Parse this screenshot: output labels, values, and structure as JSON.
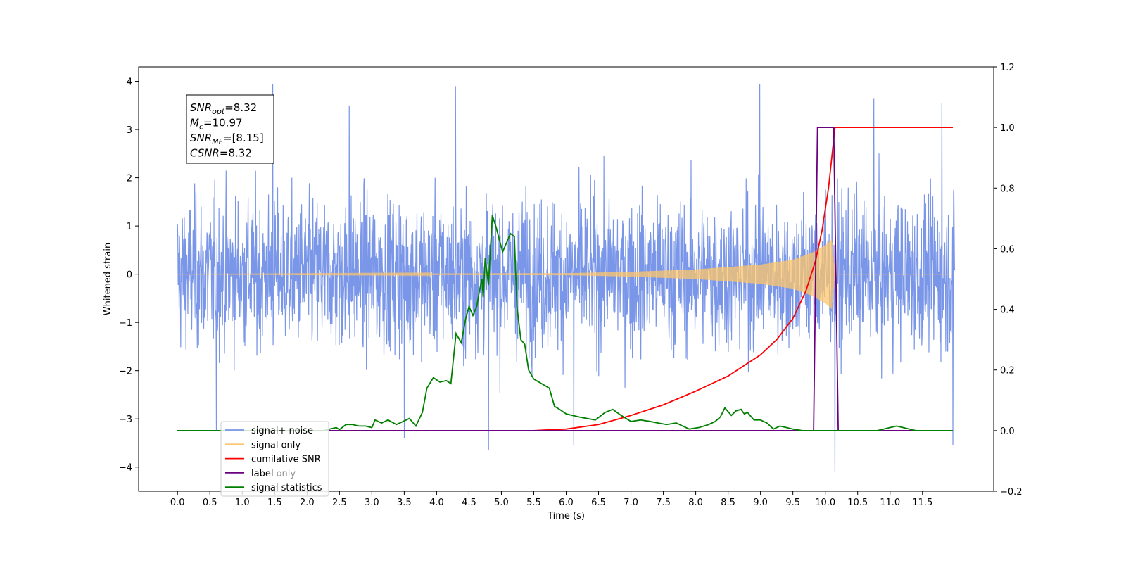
{
  "chart_data": {
    "type": "line",
    "title": "",
    "xlabel": "Time (s)",
    "ylabel": "Whitened strain",
    "xlim": [
      -0.6,
      12.6
    ],
    "ylim": [
      -4.5,
      4.3
    ],
    "y2lim": [
      -0.2,
      1.2
    ],
    "x_ticks": [
      0.0,
      0.5,
      1.0,
      1.5,
      2.0,
      2.5,
      3.0,
      3.5,
      4.0,
      4.5,
      5.0,
      5.5,
      6.0,
      6.5,
      7.0,
      7.5,
      8.0,
      8.5,
      9.0,
      9.5,
      10.0,
      10.5,
      11.0,
      11.5
    ],
    "x_tick_labels": [
      "0.0",
      "0.5",
      "1.0",
      "1.5",
      "2.0",
      "2.5",
      "3.0",
      "3.5",
      "4.0",
      "4.5",
      "5.0",
      "5.5",
      "6.0",
      "6.5",
      "7.0",
      "7.5",
      "8.0",
      "8.5",
      "9.0",
      "9.5",
      "10.0",
      "10.5",
      "11.0",
      "11.5"
    ],
    "y_ticks": [
      -4,
      -3,
      -2,
      -1,
      0,
      1,
      2,
      3,
      4
    ],
    "y_tick_labels": [
      "−4",
      "−3",
      "−2",
      "−1",
      "0",
      "1",
      "2",
      "3",
      "4"
    ],
    "y2_ticks": [
      -0.2,
      0.0,
      0.2,
      0.4,
      0.6,
      0.8,
      1.0,
      1.2
    ],
    "y2_tick_labels": [
      "−0.2",
      "0.0",
      "0.2",
      "0.4",
      "0.6",
      "0.8",
      "1.0",
      "1.2"
    ],
    "grid": false,
    "legend_position": "lower-left",
    "legend": [
      {
        "label": "signal+ noise",
        "color": "#7a96e8"
      },
      {
        "label": "signal only",
        "color": "#ffc56b"
      },
      {
        "label": "cumilative SNR",
        "color": "#ff0000"
      },
      {
        "label": "label",
        "color": "#6a0080"
      },
      {
        "label": "signal statistics",
        "color": "#008000"
      }
    ],
    "legend_hidden_text": "label only",
    "info_box": [
      {
        "base": "SNR",
        "sub": "opt",
        "rest": "=8.32"
      },
      {
        "base": "M",
        "sub": "c",
        "rest": "=10.97"
      },
      {
        "base": "SNR",
        "sub": "MF",
        "rest": "=[8.15]"
      },
      {
        "base": "CSNR",
        "sub": "",
        "rest": "=8.32"
      }
    ],
    "series": [
      {
        "name": "signal+ noise",
        "axis": "left",
        "color": "#7a96e8",
        "x_range": [
          0.0,
          12.0
        ],
        "samples": 2400,
        "typical_range": [
          -2.0,
          2.0
        ],
        "peaks": [
          {
            "x": 1.47,
            "y": 3.95
          },
          {
            "x": 4.29,
            "y": 3.9
          },
          {
            "x": 8.99,
            "y": 3.95
          },
          {
            "x": 2.65,
            "y": 3.5
          },
          {
            "x": 11.8,
            "y": 3.55
          },
          {
            "x": 10.75,
            "y": 3.65
          },
          {
            "x": 0.6,
            "y": -3.25
          },
          {
            "x": 3.5,
            "y": -3.4
          },
          {
            "x": 4.8,
            "y": -3.65
          },
          {
            "x": 6.12,
            "y": -3.55
          },
          {
            "x": 10.15,
            "y": -4.1
          },
          {
            "x": 11.97,
            "y": -3.55
          }
        ]
      },
      {
        "name": "signal only",
        "axis": "left",
        "color": "#ffc56b",
        "envelope": [
          {
            "x": 0.0,
            "amp": 0.0
          },
          {
            "x": 6.0,
            "amp": 0.02
          },
          {
            "x": 7.0,
            "amp": 0.05
          },
          {
            "x": 8.0,
            "amp": 0.1
          },
          {
            "x": 9.0,
            "amp": 0.2
          },
          {
            "x": 9.5,
            "amp": 0.3
          },
          {
            "x": 9.8,
            "amp": 0.45
          },
          {
            "x": 10.0,
            "amp": 0.6
          },
          {
            "x": 10.1,
            "amp": 0.72
          },
          {
            "x": 10.15,
            "amp": 0.0
          },
          {
            "x": 12.0,
            "amp": 0.0
          }
        ]
      },
      {
        "name": "cumilative SNR",
        "axis": "right",
        "color": "#ff0000",
        "points": [
          [
            0.0,
            0.0
          ],
          [
            5.5,
            0.0
          ],
          [
            6.0,
            0.005
          ],
          [
            6.5,
            0.02
          ],
          [
            7.0,
            0.05
          ],
          [
            7.5,
            0.085
          ],
          [
            8.0,
            0.13
          ],
          [
            8.5,
            0.18
          ],
          [
            9.0,
            0.25
          ],
          [
            9.25,
            0.3
          ],
          [
            9.5,
            0.37
          ],
          [
            9.7,
            0.46
          ],
          [
            9.85,
            0.56
          ],
          [
            9.95,
            0.66
          ],
          [
            10.05,
            0.8
          ],
          [
            10.1,
            0.9
          ],
          [
            10.15,
            1.0
          ],
          [
            11.97,
            1.0
          ]
        ]
      },
      {
        "name": "label",
        "axis": "right",
        "color": "#6a0080",
        "points": [
          [
            0.0,
            0.0
          ],
          [
            9.82,
            0.0
          ],
          [
            9.88,
            1.0
          ],
          [
            10.13,
            1.0
          ],
          [
            10.2,
            0.0
          ],
          [
            11.97,
            0.0
          ]
        ]
      },
      {
        "name": "signal statistics",
        "axis": "right",
        "color": "#008000",
        "points": [
          [
            0.0,
            0.0
          ],
          [
            2.25,
            0.0
          ],
          [
            2.35,
            0.005
          ],
          [
            2.45,
            0.01
          ],
          [
            2.5,
            0.003
          ],
          [
            2.6,
            0.02
          ],
          [
            2.7,
            0.02
          ],
          [
            2.8,
            0.015
          ],
          [
            2.9,
            0.015
          ],
          [
            3.0,
            0.01
          ],
          [
            3.05,
            0.035
          ],
          [
            3.15,
            0.025
          ],
          [
            3.25,
            0.035
          ],
          [
            3.38,
            0.02
          ],
          [
            3.48,
            0.03
          ],
          [
            3.58,
            0.04
          ],
          [
            3.68,
            0.015
          ],
          [
            3.78,
            0.06
          ],
          [
            3.85,
            0.14
          ],
          [
            3.95,
            0.175
          ],
          [
            4.05,
            0.16
          ],
          [
            4.15,
            0.165
          ],
          [
            4.22,
            0.155
          ],
          [
            4.3,
            0.32
          ],
          [
            4.38,
            0.29
          ],
          [
            4.45,
            0.37
          ],
          [
            4.5,
            0.41
          ],
          [
            4.56,
            0.38
          ],
          [
            4.62,
            0.41
          ],
          [
            4.66,
            0.46
          ],
          [
            4.7,
            0.5
          ],
          [
            4.72,
            0.44
          ],
          [
            4.75,
            0.57
          ],
          [
            4.8,
            0.48
          ],
          [
            4.86,
            0.71
          ],
          [
            4.92,
            0.67
          ],
          [
            4.98,
            0.62
          ],
          [
            5.02,
            0.59
          ],
          [
            5.08,
            0.62
          ],
          [
            5.14,
            0.65
          ],
          [
            5.2,
            0.64
          ],
          [
            5.24,
            0.41
          ],
          [
            5.3,
            0.3
          ],
          [
            5.36,
            0.285
          ],
          [
            5.42,
            0.2
          ],
          [
            5.5,
            0.17
          ],
          [
            5.58,
            0.16
          ],
          [
            5.66,
            0.15
          ],
          [
            5.74,
            0.14
          ],
          [
            5.82,
            0.08
          ],
          [
            5.9,
            0.07
          ],
          [
            6.0,
            0.055
          ],
          [
            6.2,
            0.045
          ],
          [
            6.45,
            0.035
          ],
          [
            6.6,
            0.06
          ],
          [
            6.72,
            0.07
          ],
          [
            6.85,
            0.05
          ],
          [
            7.0,
            0.03
          ],
          [
            7.15,
            0.035
          ],
          [
            7.3,
            0.03
          ],
          [
            7.42,
            0.025
          ],
          [
            7.55,
            0.02
          ],
          [
            7.7,
            0.025
          ],
          [
            7.8,
            0.015
          ],
          [
            7.9,
            0.005
          ],
          [
            8.05,
            0.01
          ],
          [
            8.2,
            0.02
          ],
          [
            8.3,
            0.03
          ],
          [
            8.38,
            0.045
          ],
          [
            8.45,
            0.075
          ],
          [
            8.55,
            0.05
          ],
          [
            8.62,
            0.065
          ],
          [
            8.7,
            0.07
          ],
          [
            8.75,
            0.055
          ],
          [
            8.8,
            0.06
          ],
          [
            8.9,
            0.035
          ],
          [
            9.0,
            0.035
          ],
          [
            9.1,
            0.025
          ],
          [
            9.2,
            0.005
          ],
          [
            9.3,
            0.015
          ],
          [
            9.4,
            0.01
          ],
          [
            9.5,
            0.005
          ],
          [
            9.65,
            0.0
          ],
          [
            9.85,
            0.0
          ],
          [
            10.1,
            0.0
          ],
          [
            10.2,
            0.0
          ],
          [
            10.3,
            0.0
          ],
          [
            10.35,
            0.0
          ],
          [
            10.45,
            0.0
          ],
          [
            10.6,
            0.0
          ],
          [
            10.7,
            0.0
          ],
          [
            10.8,
            0.0
          ],
          [
            10.9,
            0.005
          ],
          [
            11.0,
            0.01
          ],
          [
            11.1,
            0.015
          ],
          [
            11.2,
            0.01
          ],
          [
            11.3,
            0.005
          ],
          [
            11.4,
            0.0
          ],
          [
            11.97,
            0.0
          ]
        ]
      }
    ]
  }
}
